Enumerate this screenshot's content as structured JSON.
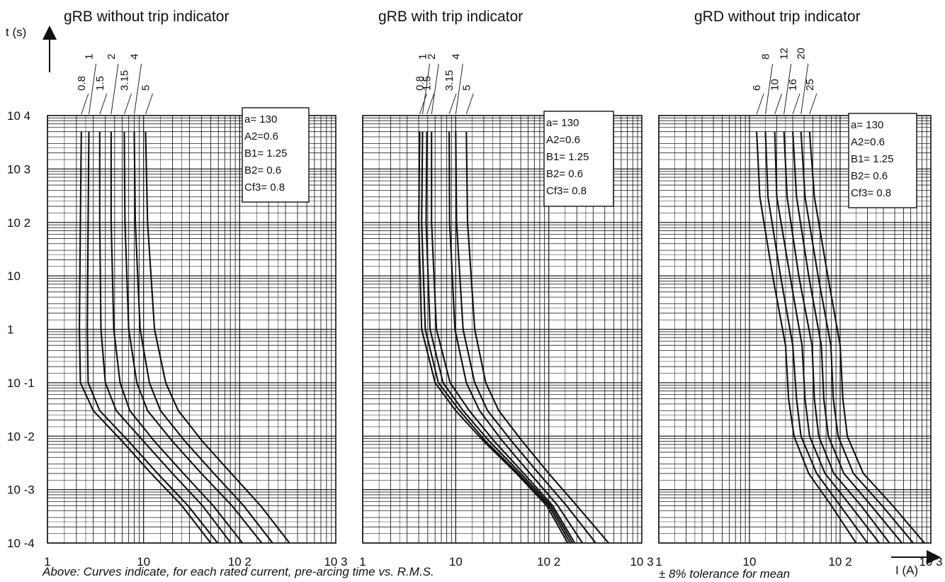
{
  "ylabel": "t (s)",
  "xlabel": "I (A)",
  "y_ticks": [
    "10 4",
    "10 3",
    "10 2",
    "10",
    "1",
    "10 -1",
    "10 -2",
    "10 -3",
    "10 -4"
  ],
  "x_ticks": [
    "1",
    "10",
    "10 2",
    "10 3"
  ],
  "legend_lines": [
    "a= 130",
    "A2=0.6",
    "B1= 1.25",
    "B2= 0.6",
    "Cf3= 0.8"
  ],
  "footnote_left": "Above: Curves indicate, for each rated current, pre-arcing time vs. R.M.S.",
  "footnote_right": "± 8% tolerance for mean",
  "chart_data": [
    {
      "type": "line",
      "title": "gRB without trip indicator",
      "xlabel": "I (A)",
      "ylabel": "t (s)",
      "x_scale": "log",
      "y_scale": "log",
      "xlim": [
        1,
        1000
      ],
      "ylim": [
        0.0001,
        10000
      ],
      "grid": true,
      "legend": "top-right",
      "series_labels": [
        "0.8",
        "1",
        "1.5",
        "2",
        "3.15",
        "4",
        "5"
      ],
      "series": [
        {
          "name": "0.8",
          "points": [
            [
              2.25,
              5000
            ],
            [
              2.2,
              100
            ],
            [
              2.15,
              1
            ],
            [
              2.2,
              0.1
            ],
            [
              3,
              0.03
            ],
            [
              6,
              0.008
            ],
            [
              12,
              0.002
            ],
            [
              25,
              0.0005
            ],
            [
              50,
              0.0001
            ]
          ]
        },
        {
          "name": "1",
          "points": [
            [
              2.7,
              5000
            ],
            [
              2.65,
              100
            ],
            [
              2.6,
              1
            ],
            [
              2.65,
              0.1
            ],
            [
              3.5,
              0.03
            ],
            [
              7,
              0.008
            ],
            [
              14,
              0.002
            ],
            [
              29,
              0.0005
            ],
            [
              59,
              0.0001
            ]
          ]
        },
        {
          "name": "1.5",
          "points": [
            [
              3.5,
              5000
            ],
            [
              3.5,
              100
            ],
            [
              3.6,
              1
            ],
            [
              4,
              0.1
            ],
            [
              5.2,
              0.03
            ],
            [
              10,
              0.008
            ],
            [
              20,
              0.002
            ],
            [
              41,
              0.0005
            ],
            [
              81,
              0.0001
            ]
          ]
        },
        {
          "name": "2",
          "points": [
            [
              4.6,
              5000
            ],
            [
              4.6,
              100
            ],
            [
              4.9,
              1
            ],
            [
              5.7,
              0.1
            ],
            [
              7.2,
              0.03
            ],
            [
              13,
              0.008
            ],
            [
              26,
              0.002
            ],
            [
              53,
              0.0005
            ],
            [
              107,
              0.0001
            ]
          ]
        },
        {
          "name": "3.15",
          "points": [
            [
              6.3,
              5000
            ],
            [
              6.4,
              100
            ],
            [
              7,
              1
            ],
            [
              8.5,
              0.1
            ],
            [
              11,
              0.03
            ],
            [
              20,
              0.008
            ],
            [
              40,
              0.002
            ],
            [
              83,
              0.0005
            ],
            [
              170,
              0.0001
            ]
          ]
        },
        {
          "name": "4",
          "points": [
            [
              8,
              5000
            ],
            [
              8.2,
              100
            ],
            [
              9.2,
              1
            ],
            [
              11.5,
              0.1
            ],
            [
              15,
              0.03
            ],
            [
              27,
              0.008
            ],
            [
              54,
              0.002
            ],
            [
              110,
              0.0005
            ],
            [
              220,
              0.0001
            ]
          ]
        },
        {
          "name": "5",
          "points": [
            [
              10.5,
              5000
            ],
            [
              11,
              100
            ],
            [
              13,
              1
            ],
            [
              17,
              0.1
            ],
            [
              23,
              0.03
            ],
            [
              41,
              0.008
            ],
            [
              82,
              0.002
            ],
            [
              165,
              0.0005
            ],
            [
              330,
              0.0001
            ]
          ]
        }
      ]
    },
    {
      "type": "line",
      "title": "gRB with trip indicator",
      "xlabel": "I (A)",
      "ylabel": "t (s)",
      "x_scale": "log",
      "y_scale": "log",
      "xlim": [
        1,
        1000
      ],
      "ylim": [
        0.0001,
        10000
      ],
      "grid": true,
      "legend": "top-right",
      "series_labels": [
        "0.8",
        "1",
        "1.5",
        "2",
        "3.15",
        "4",
        "5"
      ],
      "series": [
        {
          "name": "0.8",
          "points": [
            [
              4.1,
              5000
            ],
            [
              4,
              100
            ],
            [
              4.3,
              1
            ],
            [
              6,
              0.1
            ],
            [
              10,
              0.03
            ],
            [
              20,
              0.008
            ],
            [
              45,
              0.002
            ],
            [
              95,
              0.0005
            ],
            [
              160,
              0.0001
            ]
          ]
        },
        {
          "name": "1",
          "points": [
            [
              4.4,
              5000
            ],
            [
              4.3,
              100
            ],
            [
              4.7,
              1
            ],
            [
              6.5,
              0.1
            ],
            [
              11,
              0.03
            ],
            [
              21,
              0.008
            ],
            [
              47,
              0.002
            ],
            [
              100,
              0.0005
            ],
            [
              170,
              0.0001
            ]
          ]
        },
        {
          "name": "1.5",
          "points": [
            [
              4.9,
              5000
            ],
            [
              4.8,
              100
            ],
            [
              5.3,
              1
            ],
            [
              7.3,
              0.1
            ],
            [
              12,
              0.03
            ],
            [
              23,
              0.008
            ],
            [
              50,
              0.002
            ],
            [
              105,
              0.0005
            ],
            [
              180,
              0.0001
            ]
          ]
        },
        {
          "name": "2",
          "points": [
            [
              5.5,
              5000
            ],
            [
              5.5,
              100
            ],
            [
              6.2,
              1
            ],
            [
              8.7,
              0.1
            ],
            [
              14,
              0.03
            ],
            [
              26,
              0.008
            ],
            [
              54,
              0.002
            ],
            [
              110,
              0.0005
            ],
            [
              190,
              0.0001
            ]
          ]
        },
        {
          "name": "3.15",
          "points": [
            [
              8.5,
              5000
            ],
            [
              8.6,
              100
            ],
            [
              9.8,
              1
            ],
            [
              13,
              0.1
            ],
            [
              18,
              0.03
            ],
            [
              32,
              0.008
            ],
            [
              63,
              0.002
            ],
            [
              125,
              0.0005
            ],
            [
              230,
              0.0001
            ]
          ]
        },
        {
          "name": "4",
          "points": [
            [
              10,
              5000
            ],
            [
              10.2,
              100
            ],
            [
              12,
              1
            ],
            [
              16,
              0.1
            ],
            [
              22,
              0.03
            ],
            [
              40,
              0.008
            ],
            [
              78,
              0.002
            ],
            [
              155,
              0.0005
            ],
            [
              320,
              0.0001
            ]
          ]
        },
        {
          "name": "5",
          "points": [
            [
              13,
              5000
            ],
            [
              13.4,
              100
            ],
            [
              16,
              1
            ],
            [
              21,
              0.1
            ],
            [
              29,
              0.03
            ],
            [
              52,
              0.008
            ],
            [
              100,
              0.002
            ],
            [
              200,
              0.0005
            ],
            [
              440,
              0.0001
            ]
          ]
        }
      ]
    },
    {
      "type": "line",
      "title": "gRD without trip indicator",
      "xlabel": "I (A)",
      "ylabel": "t (s)",
      "x_scale": "log",
      "y_scale": "log",
      "xlim": [
        1,
        1000
      ],
      "ylim": [
        0.0001,
        10000
      ],
      "grid": true,
      "legend": "top-right",
      "series_labels": [
        "6",
        "8",
        "10",
        "12",
        "16",
        "20",
        "25"
      ],
      "series": [
        {
          "name": "6",
          "points": [
            [
              12,
              5000
            ],
            [
              13,
              300
            ],
            [
              18,
              10
            ],
            [
              25,
              0.5
            ],
            [
              27,
              0.05
            ],
            [
              31,
              0.01
            ],
            [
              45,
              0.002
            ],
            [
              80,
              0.0005
            ],
            [
              150,
              0.0001
            ]
          ]
        },
        {
          "name": "8",
          "points": [
            [
              15,
              5000
            ],
            [
              16,
              300
            ],
            [
              22,
              10
            ],
            [
              30,
              0.5
            ],
            [
              33,
              0.05
            ],
            [
              37,
              0.01
            ],
            [
              55,
              0.002
            ],
            [
              100,
              0.0005
            ],
            [
              200,
              0.0001
            ]
          ]
        },
        {
          "name": "10",
          "points": [
            [
              19,
              5000
            ],
            [
              20,
              300
            ],
            [
              28,
              10
            ],
            [
              38,
              0.5
            ],
            [
              41,
              0.05
            ],
            [
              46,
              0.01
            ],
            [
              68,
              0.002
            ],
            [
              130,
              0.0005
            ],
            [
              270,
              0.0001
            ]
          ]
        },
        {
          "name": "12",
          "points": [
            [
              24,
              5000
            ],
            [
              26,
              300
            ],
            [
              35,
              10
            ],
            [
              49,
              0.5
            ],
            [
              52,
              0.05
            ],
            [
              58,
              0.01
            ],
            [
              85,
              0.002
            ],
            [
              170,
              0.0005
            ],
            [
              350,
              0.0001
            ]
          ]
        },
        {
          "name": "16",
          "points": [
            [
              30,
              5000
            ],
            [
              33,
              300
            ],
            [
              45,
              10
            ],
            [
              62,
              0.5
            ],
            [
              66,
              0.05
            ],
            [
              74,
              0.01
            ],
            [
              110,
              0.002
            ],
            [
              220,
              0.0005
            ],
            [
              480,
              0.0001
            ]
          ]
        },
        {
          "name": "20",
          "points": [
            [
              37,
              5000
            ],
            [
              41,
              300
            ],
            [
              57,
              10
            ],
            [
              79,
              0.5
            ],
            [
              84,
              0.05
            ],
            [
              95,
              0.01
            ],
            [
              140,
              0.002
            ],
            [
              290,
              0.0005
            ],
            [
              640,
              0.0001
            ]
          ]
        },
        {
          "name": "25",
          "points": [
            [
              46,
              5000
            ],
            [
              52,
              300
            ],
            [
              73,
              10
            ],
            [
              100,
              0.5
            ],
            [
              107,
              0.05
            ],
            [
              120,
              0.01
            ],
            [
              180,
              0.002
            ],
            [
              380,
              0.0005
            ],
            [
              850,
              0.0001
            ]
          ]
        }
      ]
    }
  ]
}
